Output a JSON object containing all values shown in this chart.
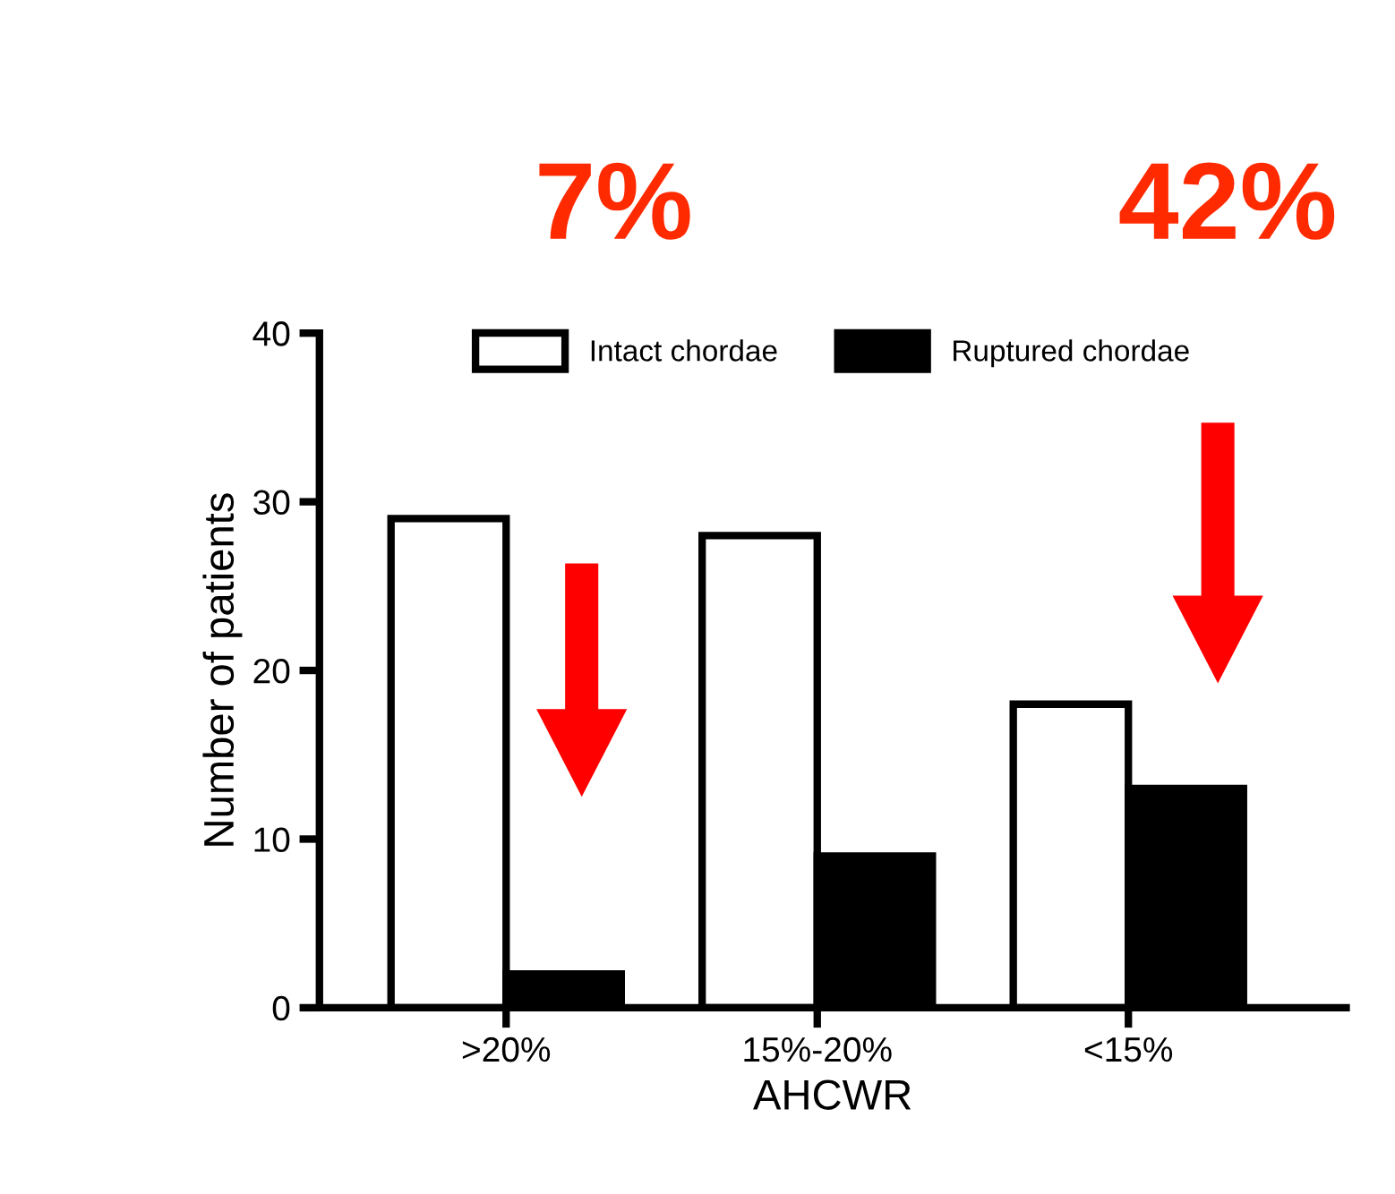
{
  "chart_data": {
    "type": "bar",
    "xlabel": "AHCWR",
    "ylabel": "Number of patients",
    "categories": [
      ">20%",
      "15%-20%",
      "<15%"
    ],
    "series": [
      {
        "name": "Intact chordae",
        "color": "#ffffff",
        "values": [
          29,
          28,
          18
        ]
      },
      {
        "name": "Ruptured chordae",
        "color": "#000000",
        "values": [
          2,
          9,
          13
        ]
      }
    ],
    "ylim": [
      0,
      40
    ],
    "yticks": [
      0,
      10,
      20,
      30,
      40
    ],
    "grid": false,
    "legend": "top",
    "annotations": [
      "7%",
      "42%"
    ]
  }
}
